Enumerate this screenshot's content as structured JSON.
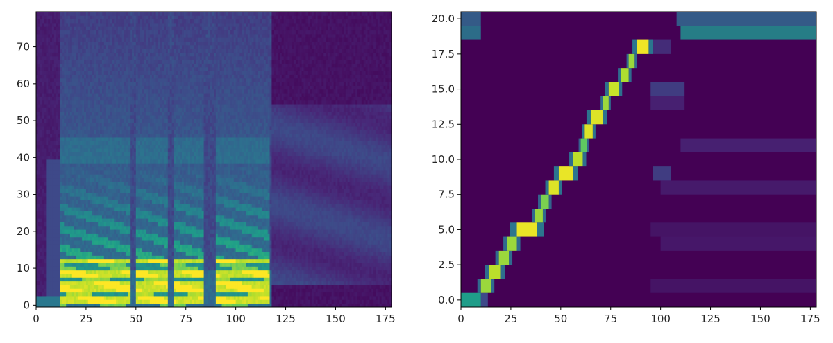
{
  "chart_data": [
    {
      "type": "heatmap",
      "name": "mel-spectrogram",
      "title": "",
      "xlabel": "",
      "ylabel": "",
      "xlim": [
        0,
        178
      ],
      "ylim": [
        -0.5,
        79.5
      ],
      "x_ticks": [
        0,
        25,
        50,
        75,
        100,
        125,
        150,
        175
      ],
      "x_tick_labels": [
        "0",
        "25",
        "50",
        "75",
        "100",
        "125",
        "150",
        "175"
      ],
      "y_ticks": [
        0,
        10,
        20,
        30,
        40,
        50,
        60,
        70
      ],
      "y_tick_labels": [
        "0",
        "10",
        "20",
        "30",
        "40",
        "50",
        "60",
        "70"
      ],
      "colormap": "viridis",
      "grid": false,
      "speech_segments": [
        [
          12,
          47
        ],
        [
          50,
          66
        ],
        [
          69,
          84
        ],
        [
          90,
          117
        ]
      ],
      "silence_gaps": [
        [
          47,
          50
        ],
        [
          66,
          69
        ],
        [
          84,
          90
        ]
      ],
      "trailing_silence_start": 118
    },
    {
      "type": "heatmap",
      "name": "attention-alignment",
      "title": "",
      "xlabel": "",
      "ylabel": "",
      "xlim": [
        0,
        178
      ],
      "ylim": [
        -0.5,
        20.5
      ],
      "x_ticks": [
        0,
        25,
        50,
        75,
        100,
        125,
        150,
        175
      ],
      "x_tick_labels": [
        "0",
        "25",
        "50",
        "75",
        "100",
        "125",
        "150",
        "175"
      ],
      "y_ticks": [
        0,
        2.5,
        5,
        7.5,
        10,
        12.5,
        15,
        17.5,
        20
      ],
      "y_tick_labels": [
        "0.0",
        "2.5",
        "5.0",
        "7.5",
        "10.0",
        "12.5",
        "15.0",
        "17.5",
        "20.0"
      ],
      "colormap": "viridis",
      "grid": false,
      "alignment_path": [
        {
          "row": 0,
          "x": [
            0,
            10
          ],
          "weight": 0.55
        },
        {
          "row": 1,
          "x": [
            10,
            15
          ],
          "weight": 0.85
        },
        {
          "row": 2,
          "x": [
            14,
            20
          ],
          "weight": 0.9
        },
        {
          "row": 3,
          "x": [
            19,
            24
          ],
          "weight": 0.85
        },
        {
          "row": 4,
          "x": [
            23,
            28
          ],
          "weight": 0.85
        },
        {
          "row": 5,
          "x": [
            28,
            38
          ],
          "weight": 0.97
        },
        {
          "row": 6,
          "x": [
            37,
            41
          ],
          "weight": 0.85
        },
        {
          "row": 7,
          "x": [
            40,
            44
          ],
          "weight": 0.8
        },
        {
          "row": 8,
          "x": [
            44,
            49
          ],
          "weight": 0.95
        },
        {
          "row": 9,
          "x": [
            49,
            56
          ],
          "weight": 0.97
        },
        {
          "row": 10,
          "x": [
            56,
            61
          ],
          "weight": 0.9
        },
        {
          "row": 11,
          "x": [
            60,
            63
          ],
          "weight": 0.75
        },
        {
          "row": 12,
          "x": [
            62,
            66
          ],
          "weight": 0.95
        },
        {
          "row": 13,
          "x": [
            65,
            71
          ],
          "weight": 0.95
        },
        {
          "row": 14,
          "x": [
            71,
            74
          ],
          "weight": 0.85
        },
        {
          "row": 15,
          "x": [
            74,
            79
          ],
          "weight": 0.92
        },
        {
          "row": 16,
          "x": [
            80,
            84
          ],
          "weight": 0.88
        },
        {
          "row": 17,
          "x": [
            84,
            87
          ],
          "weight": 0.85
        },
        {
          "row": 18,
          "x": [
            88,
            94
          ],
          "weight": 0.98
        }
      ]
    }
  ]
}
